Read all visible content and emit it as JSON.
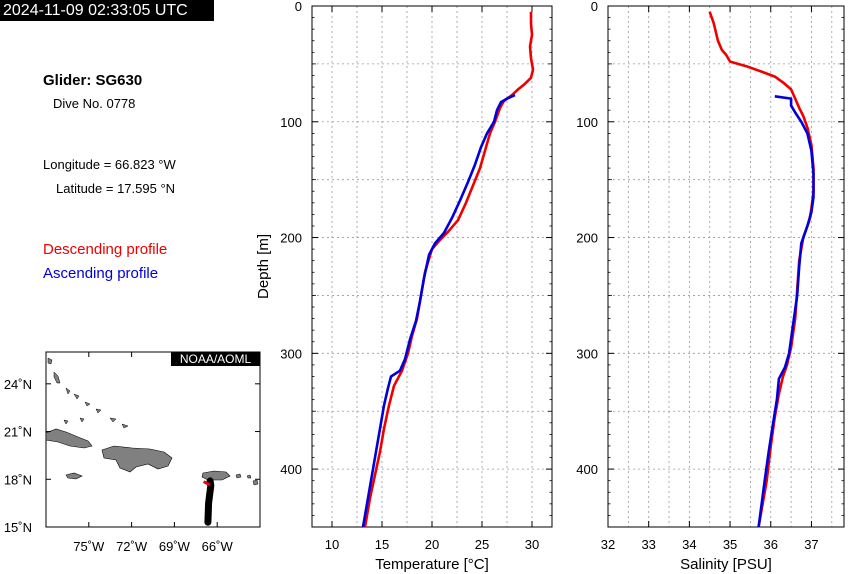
{
  "header": {
    "timestamp": "2024-11-09 02:33:05 UTC",
    "glider": "Glider: SG630",
    "dive": "Dive No. 0778",
    "longitude": "Longitude = 66.823 °W",
    "latitude": "Latitude = 17.595 °N",
    "descending_label": "Descending profile",
    "ascending_label": "Ascending profile"
  },
  "colors": {
    "descending": "#ee0000",
    "ascending": "#0000dd",
    "land": "#808080",
    "track": "#000000"
  },
  "map": {
    "badge": "NOAA/AOML",
    "lon_ticks": [
      -75,
      -72,
      -69,
      -66
    ],
    "lon_labels": [
      "75˚W",
      "72˚W",
      "69˚W",
      "66˚W"
    ],
    "lat_ticks": [
      15,
      18,
      21,
      24
    ],
    "lat_labels": [
      "15˚N",
      "18˚N",
      "21˚N",
      "24˚N"
    ],
    "lon_range": [
      -78,
      -63
    ],
    "lat_range": [
      15,
      26
    ],
    "track": [
      [
        -66.5,
        17.9
      ],
      [
        -66.45,
        17.6
      ],
      [
        -66.6,
        16.5
      ],
      [
        -66.65,
        15.3
      ]
    ],
    "descending_marker": [
      -66.8,
      17.65
    ]
  },
  "chart_data": [
    {
      "type": "line",
      "xlabel": "Temperature [°C]",
      "ylabel": "Depth [m]",
      "xlim": [
        8,
        32
      ],
      "ylim": [
        450,
        0
      ],
      "xticks": [
        10,
        15,
        20,
        25,
        30
      ],
      "yticks": [
        0,
        100,
        200,
        300,
        400
      ],
      "grid": true,
      "series": [
        {
          "name": "Descending profile",
          "points": [
            [
              29.9,
              5
            ],
            [
              29.9,
              15
            ],
            [
              30.0,
              25
            ],
            [
              29.8,
              35
            ],
            [
              29.9,
              45
            ],
            [
              30.1,
              55
            ],
            [
              29.9,
              62
            ],
            [
              29.2,
              68
            ],
            [
              28.6,
              72
            ],
            [
              28.0,
              77
            ],
            [
              27.2,
              82
            ],
            [
              26.8,
              88
            ],
            [
              26.3,
              100
            ],
            [
              25.8,
              110
            ],
            [
              25.3,
              125
            ],
            [
              24.8,
              140
            ],
            [
              24.1,
              155
            ],
            [
              23.4,
              170
            ],
            [
              22.6,
              185
            ],
            [
              21.6,
              195
            ],
            [
              20.8,
              202
            ],
            [
              20.0,
              210
            ],
            [
              19.3,
              230
            ],
            [
              18.9,
              250
            ],
            [
              18.5,
              270
            ],
            [
              18.0,
              285
            ],
            [
              17.6,
              300
            ],
            [
              17.0,
              315
            ],
            [
              16.2,
              328
            ],
            [
              15.7,
              345
            ],
            [
              15.2,
              365
            ],
            [
              14.8,
              385
            ],
            [
              14.3,
              405
            ],
            [
              13.8,
              425
            ],
            [
              13.3,
              450
            ]
          ]
        },
        {
          "name": "Ascending profile",
          "points": [
            [
              28.3,
              77
            ],
            [
              27.5,
              80
            ],
            [
              26.9,
              83
            ],
            [
              26.5,
              90
            ],
            [
              26.2,
              100
            ],
            [
              25.5,
              110
            ],
            [
              24.9,
              122
            ],
            [
              24.3,
              137
            ],
            [
              23.6,
              152
            ],
            [
              22.8,
              168
            ],
            [
              22.0,
              183
            ],
            [
              21.2,
              196
            ],
            [
              20.3,
              205
            ],
            [
              19.7,
              215
            ],
            [
              19.2,
              235
            ],
            [
              18.8,
              255
            ],
            [
              18.4,
              272
            ],
            [
              17.8,
              288
            ],
            [
              17.3,
              305
            ],
            [
              16.8,
              315
            ],
            [
              15.9,
              320
            ],
            [
              15.6,
              330
            ],
            [
              15.2,
              345
            ],
            [
              14.8,
              365
            ],
            [
              14.4,
              385
            ],
            [
              14.0,
              405
            ],
            [
              13.6,
              425
            ],
            [
              13.1,
              450
            ]
          ]
        }
      ]
    },
    {
      "type": "line",
      "xlabel": "Salinity [PSU]",
      "ylabel": "",
      "xlim": [
        32,
        37.8
      ],
      "ylim": [
        450,
        0
      ],
      "xticks": [
        32,
        33,
        34,
        35,
        36,
        37
      ],
      "yticks": [
        0,
        100,
        200,
        300,
        400
      ],
      "grid": true,
      "series": [
        {
          "name": "Descending profile",
          "points": [
            [
              34.5,
              5
            ],
            [
              34.6,
              15
            ],
            [
              34.7,
              30
            ],
            [
              34.8,
              38
            ],
            [
              34.9,
              42
            ],
            [
              35.0,
              48
            ],
            [
              35.4,
              52
            ],
            [
              35.8,
              57
            ],
            [
              36.1,
              61
            ],
            [
              36.3,
              66
            ],
            [
              36.5,
              72
            ],
            [
              36.6,
              80
            ],
            [
              36.7,
              88
            ],
            [
              36.8,
              95
            ],
            [
              36.9,
              105
            ],
            [
              37.0,
              120
            ],
            [
              37.05,
              140
            ],
            [
              37.05,
              160
            ],
            [
              37.0,
              175
            ],
            [
              36.95,
              185
            ],
            [
              36.8,
              200
            ],
            [
              36.7,
              220
            ],
            [
              36.65,
              245
            ],
            [
              36.6,
              270
            ],
            [
              36.5,
              295
            ],
            [
              36.4,
              310
            ],
            [
              36.3,
              320
            ],
            [
              36.2,
              335
            ],
            [
              36.1,
              355
            ],
            [
              36.0,
              380
            ],
            [
              35.9,
              410
            ],
            [
              35.7,
              450
            ]
          ]
        },
        {
          "name": "Ascending profile",
          "points": [
            [
              36.1,
              78
            ],
            [
              36.5,
              80
            ],
            [
              36.5,
              86
            ],
            [
              36.6,
              92
            ],
            [
              36.75,
              100
            ],
            [
              36.9,
              110
            ],
            [
              37.0,
              125
            ],
            [
              37.05,
              145
            ],
            [
              37.05,
              165
            ],
            [
              37.0,
              178
            ],
            [
              36.9,
              190
            ],
            [
              36.75,
              205
            ],
            [
              36.7,
              225
            ],
            [
              36.65,
              250
            ],
            [
              36.55,
              275
            ],
            [
              36.45,
              300
            ],
            [
              36.35,
              312
            ],
            [
              36.2,
              322
            ],
            [
              36.15,
              340
            ],
            [
              36.05,
              362
            ],
            [
              35.95,
              385
            ],
            [
              35.85,
              410
            ],
            [
              35.7,
              450
            ]
          ]
        }
      ]
    }
  ]
}
